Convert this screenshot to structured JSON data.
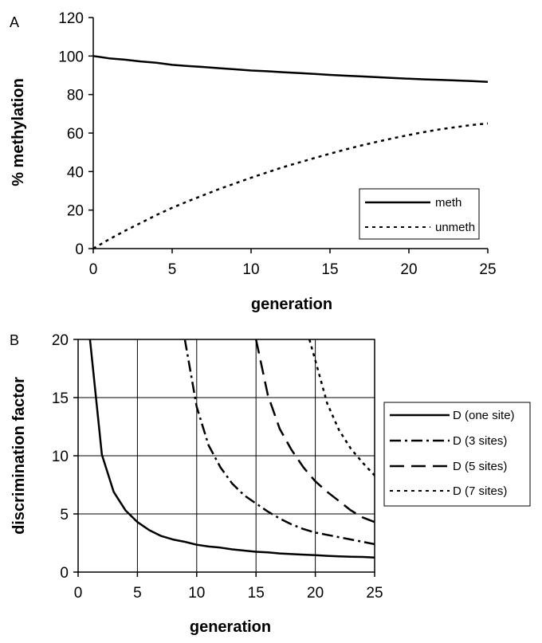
{
  "chart_data": [
    {
      "panel": "A",
      "type": "line",
      "title": "",
      "xlabel": "generation",
      "ylabel": "% methylation",
      "xlim": [
        0,
        25
      ],
      "ylim": [
        0,
        120
      ],
      "xticks": [
        0,
        5,
        10,
        15,
        20,
        25
      ],
      "yticks": [
        0,
        20,
        40,
        60,
        80,
        100,
        120
      ],
      "grid": false,
      "legend_position": "bottom-right",
      "series": [
        {
          "name": "meth",
          "style": "solid",
          "x": [
            0,
            1,
            2,
            3,
            4,
            5,
            6,
            7,
            8,
            9,
            10,
            11,
            12,
            13,
            14,
            15,
            16,
            17,
            18,
            19,
            20,
            21,
            22,
            23,
            24,
            25
          ],
          "y": [
            100,
            98.8,
            98.1,
            97.2,
            96.5,
            95.4,
            94.8,
            94.3,
            93.7,
            93.1,
            92.5,
            92.1,
            91.6,
            91.2,
            90.7,
            90.2,
            89.8,
            89.4,
            89.0,
            88.6,
            88.2,
            87.9,
            87.6,
            87.3,
            87.0,
            86.6
          ]
        },
        {
          "name": "unmeth",
          "style": "dotted",
          "x": [
            0,
            1,
            2,
            3,
            4,
            5,
            6,
            7,
            8,
            9,
            10,
            11,
            12,
            13,
            14,
            15,
            16,
            17,
            18,
            19,
            20,
            21,
            22,
            23,
            24,
            25
          ],
          "y": [
            0,
            4.8,
            9.2,
            13.3,
            17.4,
            21.2,
            24.6,
            27.8,
            31.0,
            33.9,
            36.8,
            39.5,
            42.2,
            44.6,
            47.0,
            49.3,
            51.5,
            53.6,
            55.5,
            57.3,
            59.0,
            60.6,
            62.0,
            63.1,
            64.2,
            65.0
          ]
        }
      ]
    },
    {
      "panel": "B",
      "type": "line",
      "title": "",
      "xlabel": "generation",
      "ylabel": "discrimination factor",
      "xlim": [
        0,
        25
      ],
      "ylim": [
        0,
        20
      ],
      "xticks": [
        0,
        5,
        10,
        15,
        20,
        25
      ],
      "yticks": [
        0,
        5,
        10,
        15,
        20
      ],
      "grid": true,
      "legend_position": "right",
      "series": [
        {
          "name": "D (one site)",
          "style": "solid",
          "x": [
            1,
            2,
            3,
            4,
            5,
            6,
            7,
            8,
            9,
            10,
            11,
            12,
            13,
            14,
            15,
            16,
            17,
            18,
            19,
            20,
            21,
            22,
            23,
            24,
            25
          ],
          "y": [
            20,
            10.1,
            6.9,
            5.3,
            4.3,
            3.6,
            3.1,
            2.8,
            2.6,
            2.35,
            2.2,
            2.1,
            1.95,
            1.85,
            1.75,
            1.7,
            1.6,
            1.55,
            1.5,
            1.45,
            1.4,
            1.35,
            1.32,
            1.3,
            1.25
          ]
        },
        {
          "name": "D (3 sites)",
          "style": "dashdot",
          "x": [
            9,
            10,
            11,
            12,
            13,
            14,
            15,
            16,
            17,
            18,
            19,
            20,
            21,
            22,
            23,
            24,
            25
          ],
          "y": [
            20,
            14.2,
            10.9,
            9.0,
            7.6,
            6.6,
            5.9,
            5.2,
            4.6,
            4.1,
            3.7,
            3.4,
            3.2,
            3.0,
            2.8,
            2.6,
            2.4
          ]
        },
        {
          "name": "D (5 sites)",
          "style": "dashed",
          "x": [
            15,
            16,
            17,
            18,
            19,
            20,
            21,
            22,
            23,
            24,
            25
          ],
          "y": [
            20,
            15.2,
            12.3,
            10.5,
            9.0,
            7.8,
            6.9,
            6.1,
            5.3,
            4.7,
            4.3
          ]
        },
        {
          "name": "D (7 sites)",
          "style": "dotted",
          "x": [
            19.5,
            20,
            21,
            22,
            23,
            24,
            25
          ],
          "y": [
            20,
            18.2,
            14.5,
            12.2,
            10.6,
            9.4,
            8.3
          ]
        }
      ]
    }
  ]
}
